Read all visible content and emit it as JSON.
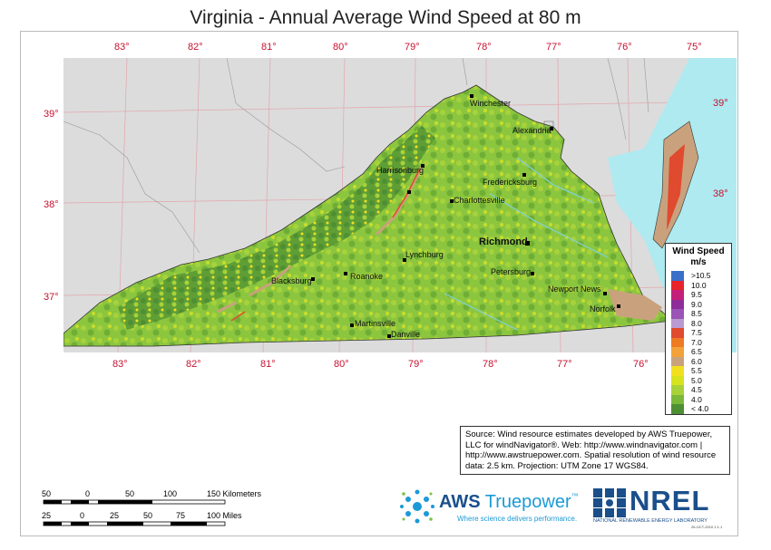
{
  "title": "Virginia - Annual Average Wind Speed at 80 m",
  "longitude_labels": [
    "83°",
    "82°",
    "81°",
    "80°",
    "79°",
    "78°",
    "77°",
    "76°",
    "75°"
  ],
  "latitude_labels": [
    "39°",
    "38°",
    "37°"
  ],
  "cities": [
    {
      "name": "Winchester",
      "big": false
    },
    {
      "name": "Alexandria",
      "big": false
    },
    {
      "name": "Harrisonburg",
      "big": false
    },
    {
      "name": "Fredericksburg",
      "big": false
    },
    {
      "name": "Charlottesville",
      "big": false
    },
    {
      "name": "Richmond",
      "big": true
    },
    {
      "name": "Lynchburg",
      "big": false
    },
    {
      "name": "Roanoke",
      "big": false
    },
    {
      "name": "Blacksburg",
      "big": false
    },
    {
      "name": "Petersburg",
      "big": false
    },
    {
      "name": "Newport News",
      "big": false
    },
    {
      "name": "Norfolk",
      "big": false
    },
    {
      "name": "Martinsville",
      "big": false
    },
    {
      "name": "Danville",
      "big": false
    }
  ],
  "legend": {
    "title": "Wind Speed",
    "unit": "m/s",
    "bins": [
      {
        "label": ">10.5",
        "color": "#3a6fc9"
      },
      {
        "label": "10.0",
        "color": "#e8242a"
      },
      {
        "label": "9.5",
        "color": "#c41f7a"
      },
      {
        "label": "9.0",
        "color": "#8e2d9a"
      },
      {
        "label": "8.5",
        "color": "#9b54b5"
      },
      {
        "label": "8.0",
        "color": "#b99ad2"
      },
      {
        "label": "7.5",
        "color": "#e04a2f"
      },
      {
        "label": "7.0",
        "color": "#ee7a23"
      },
      {
        "label": "6.5",
        "color": "#f3a23a"
      },
      {
        "label": "6.0",
        "color": "#c9a27d"
      },
      {
        "label": "5.5",
        "color": "#f2e020"
      },
      {
        "label": "5.0",
        "color": "#d6e31d"
      },
      {
        "label": "4.5",
        "color": "#a8d23a"
      },
      {
        "label": "4.0",
        "color": "#7bb83a"
      },
      {
        "label": "< 4.0",
        "color": "#4e8f34"
      }
    ]
  },
  "source": "Source: Wind resource estimates developed by AWS Truepower, LLC for windNavigator®. Web: http://www.windnavigator.com | http://www.awstruepower.com. Spatial resolution of wind resource data: 2.5 km. Projection: UTM Zone 17 WGS84.",
  "scale_km": {
    "ticks": [
      "50",
      "0",
      "50",
      "100",
      "150 Kilometers"
    ]
  },
  "scale_mi": {
    "ticks": [
      "25",
      "0",
      "25",
      "50",
      "75",
      "100 Miles"
    ]
  },
  "aws": {
    "name1": "AWS",
    "name2": "Truepower",
    "tm": "™",
    "tagline": "Where science delivers performance."
  },
  "nrel": {
    "name": "NREL",
    "sub": "NATIONAL RENEWABLE ENERGY LABORATORY",
    "code": "26-OCT-2010 1.1.1"
  }
}
